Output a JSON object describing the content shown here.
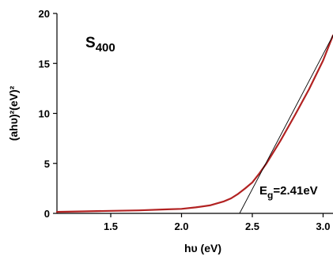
{
  "chart_data": {
    "type": "line",
    "title": "",
    "xlabel": "hυ (eV)",
    "ylabel": "(ahυ)²(eV)²",
    "xlim": [
      1.12,
      3.07
    ],
    "ylim": [
      0,
      20
    ],
    "x_ticks": [
      1.5,
      2.0,
      2.5,
      3.0
    ],
    "x_tick_labels": [
      "1.5",
      "2.0",
      "2.5",
      "3.0"
    ],
    "y_ticks": [
      0,
      5,
      10,
      15,
      20
    ],
    "y_tick_labels": [
      "0",
      "5",
      "10",
      "15",
      "20"
    ],
    "grid": false,
    "sample_label": {
      "main": "S",
      "sub": "400"
    },
    "annotation": {
      "text_main": "E",
      "text_sub": "g",
      "text_rest": "=2.41eV"
    },
    "series": [
      {
        "color": "#b22222",
        "style": "solid",
        "x": [
          1.12,
          1.3,
          1.5,
          1.7,
          1.9,
          2.0,
          2.1,
          2.2,
          2.3,
          2.35,
          2.4,
          2.45,
          2.5,
          2.55,
          2.6,
          2.7,
          2.8,
          2.9,
          3.0,
          3.07
        ],
        "y": [
          0.15,
          0.2,
          0.25,
          0.3,
          0.4,
          0.45,
          0.6,
          0.8,
          1.2,
          1.5,
          1.95,
          2.5,
          3.1,
          4.0,
          5.0,
          7.3,
          9.8,
          12.4,
          15.3,
          17.8
        ]
      },
      {
        "color": "#000000",
        "style": "thin",
        "x": [
          2.41,
          3.07
        ],
        "y": [
          0,
          17.8
        ]
      }
    ]
  }
}
